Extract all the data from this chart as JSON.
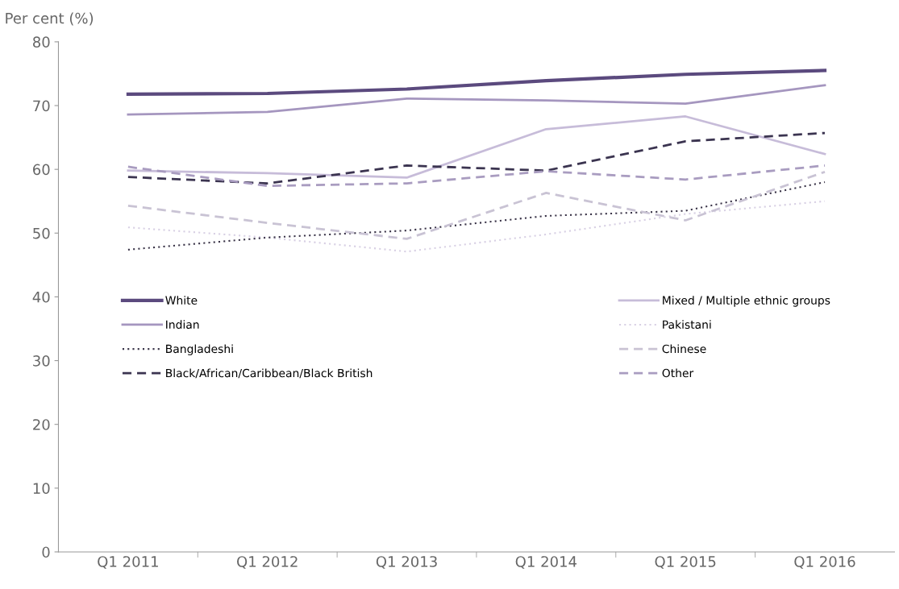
{
  "chart_data": {
    "type": "line",
    "ylabel": "Per cent (%)",
    "categories": [
      "Q1 2011",
      "Q1 2012",
      "Q1 2013",
      "Q1 2014",
      "Q1 2015",
      "Q1 2016"
    ],
    "ylim": [
      0,
      80
    ],
    "yticks": [
      0,
      10,
      20,
      30,
      40,
      50,
      60,
      70,
      80
    ],
    "grid": false,
    "legend": "center",
    "marker": "none",
    "series": [
      {
        "name": "White",
        "color": "#5b4a7e",
        "line_style": "solid",
        "values": [
          71.8,
          71.9,
          72.6,
          73.9,
          74.9,
          75.5
        ]
      },
      {
        "name": "Mixed / Multiple ethnic groups",
        "color": "#c7bcd9",
        "line_style": "solid",
        "values": [
          59.8,
          59.4,
          58.7,
          66.3,
          68.3,
          62.4
        ]
      },
      {
        "name": "Indian",
        "color": "#a596bf",
        "line_style": "solid",
        "values": [
          68.6,
          69.0,
          71.1,
          70.8,
          70.3,
          73.2
        ]
      },
      {
        "name": "Pakistani",
        "color": "#d8d0e4",
        "line_style": "dotted",
        "values": [
          50.9,
          49.3,
          47.1,
          49.8,
          53.0,
          55.0
        ]
      },
      {
        "name": "Bangladeshi",
        "color": "#3a3448",
        "line_style": "dotted",
        "values": [
          47.4,
          49.3,
          50.4,
          52.7,
          53.5,
          58.0
        ]
      },
      {
        "name": "Chinese",
        "color": "#c9c3d4",
        "line_style": "dashed",
        "values": [
          54.3,
          51.6,
          49.1,
          56.3,
          52.0,
          59.6
        ]
      },
      {
        "name": "Black/African/Caribbean/Black British",
        "color": "#3b3450",
        "line_style": "dashed",
        "values": [
          58.8,
          57.8,
          60.6,
          59.8,
          64.4,
          65.7
        ]
      },
      {
        "name": "Other",
        "color": "#a99cc0",
        "line_style": "dashed",
        "values": [
          60.4,
          57.4,
          57.8,
          59.7,
          58.4,
          60.6
        ]
      }
    ]
  }
}
